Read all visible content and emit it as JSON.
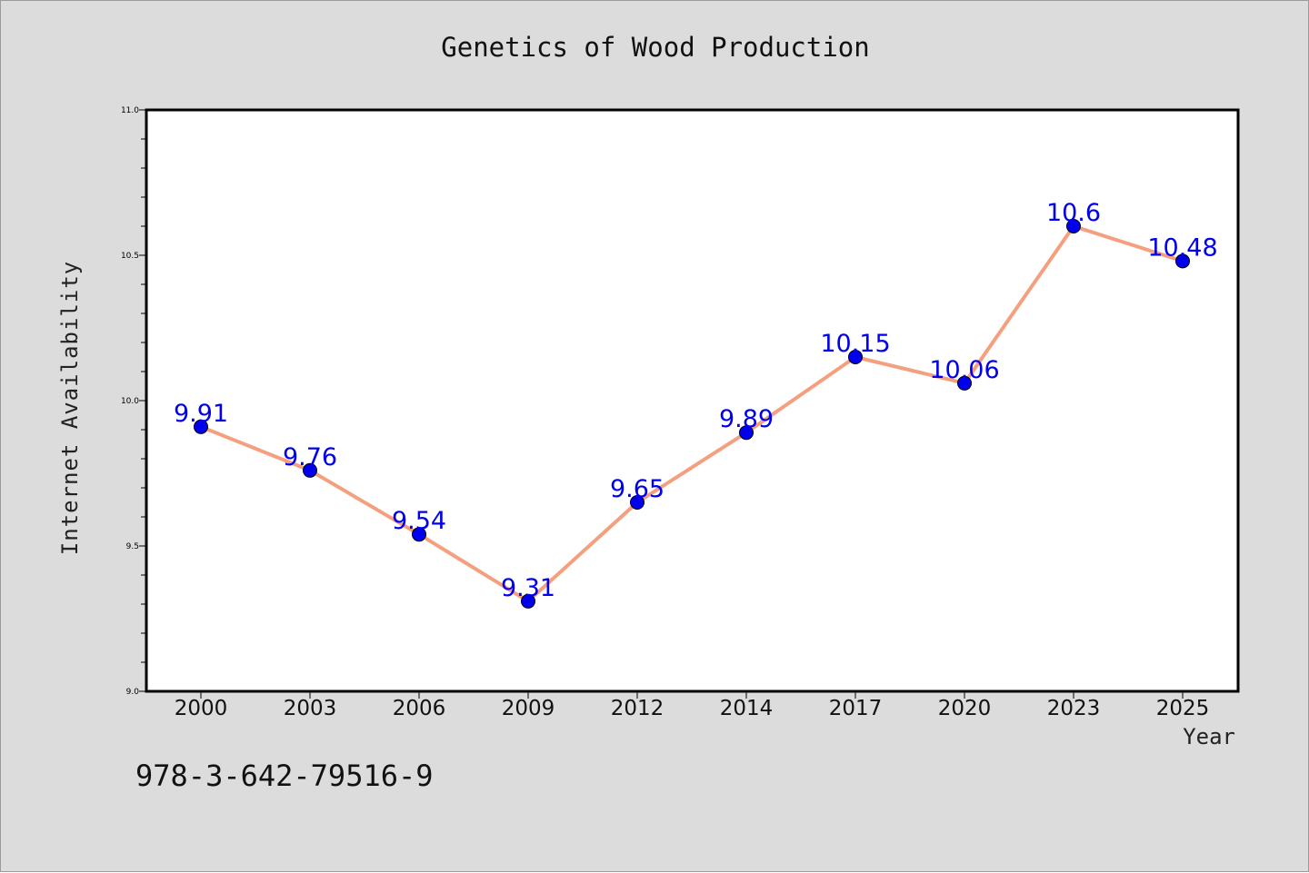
{
  "chart_data": {
    "type": "line",
    "title": "Genetics of Wood Production",
    "xlabel": "Year",
    "ylabel": "Internet Availability",
    "categories": [
      "2000",
      "2003",
      "2006",
      "2009",
      "2012",
      "2014",
      "2017",
      "2020",
      "2023",
      "2025"
    ],
    "values": [
      9.91,
      9.76,
      9.54,
      9.31,
      9.65,
      9.89,
      10.15,
      10.06,
      10.6,
      10.48
    ],
    "data_labels": [
      "9.91",
      "9.76",
      "9.54",
      "9.31",
      "9.65",
      "9.89",
      "10.15",
      "10.06",
      "10.6",
      "10.48"
    ],
    "ylim": [
      9.0,
      11.0
    ],
    "y_ticks": [
      "9.0",
      "9.5",
      "10.0",
      "10.5",
      "11.0"
    ],
    "grid": false,
    "legend": "none",
    "colors": {
      "line": "#f4a07f",
      "marker": "#0000ee",
      "data_label": "#0000ee",
      "background": "#dcdcdc",
      "plot_background": "#ffffff"
    }
  },
  "annotation": "978-3-642-79516-9"
}
